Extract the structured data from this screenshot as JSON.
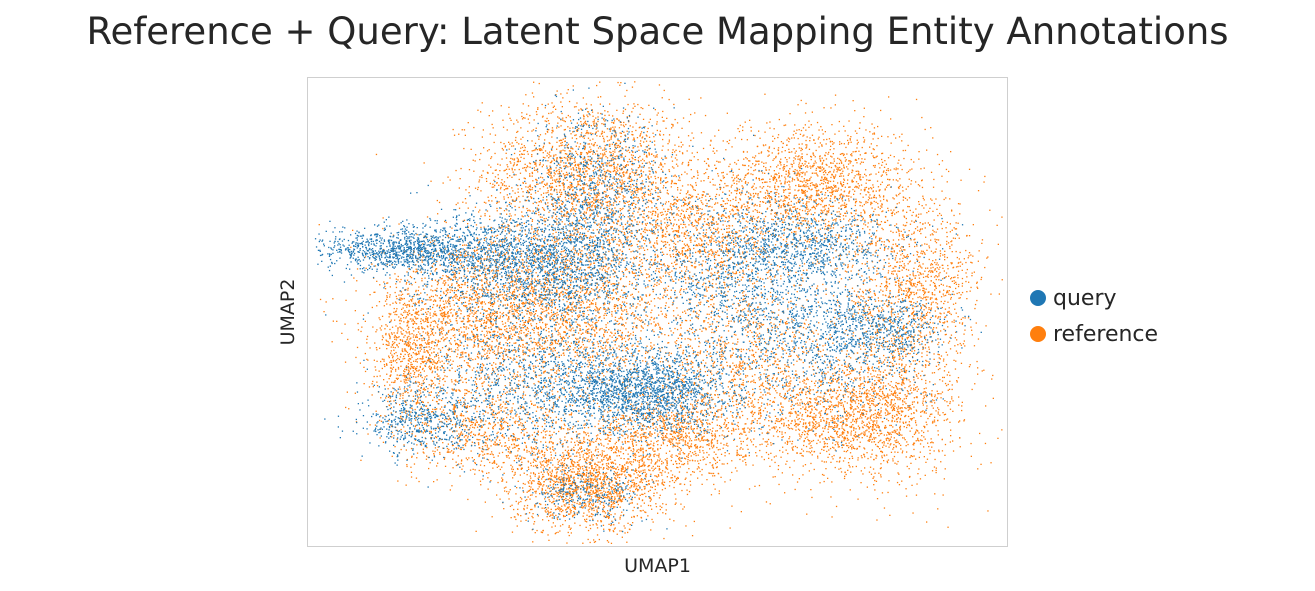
{
  "chart_data": {
    "type": "scatter",
    "title": "Reference + Query: Latent Space Mapping Entity Annotations",
    "xlabel": "UMAP1",
    "ylabel": "UMAP2",
    "grid": false,
    "ticks": false,
    "legend_placement": "right",
    "series": [
      {
        "name": "query",
        "color": "#1f77b4",
        "clusters": [
          {
            "x": -7.5,
            "y": 2.0,
            "sx": 1.2,
            "sy": 0.35,
            "n": 900
          },
          {
            "x": -4.5,
            "y": 1.7,
            "sx": 1.5,
            "sy": 0.8,
            "n": 1300
          },
          {
            "x": -2.5,
            "y": 1.2,
            "sx": 1.4,
            "sy": 1.0,
            "n": 900
          },
          {
            "x": -1.8,
            "y": 3.8,
            "sx": 1.0,
            "sy": 1.3,
            "n": 900
          },
          {
            "x": -0.5,
            "y": -2.5,
            "sx": 1.4,
            "sy": 0.7,
            "n": 2000
          },
          {
            "x": -4.0,
            "y": -2.2,
            "sx": 1.5,
            "sy": 1.3,
            "n": 900
          },
          {
            "x": -6.8,
            "y": -3.5,
            "sx": 0.8,
            "sy": 0.6,
            "n": 500
          },
          {
            "x": 2.5,
            "y": 1.0,
            "sx": 1.3,
            "sy": 1.3,
            "n": 1100
          },
          {
            "x": 4.5,
            "y": 2.2,
            "sx": 1.3,
            "sy": 0.6,
            "n": 700
          },
          {
            "x": 5.0,
            "y": -1.0,
            "sx": 1.4,
            "sy": 1.2,
            "n": 900
          },
          {
            "x": 6.5,
            "y": -0.5,
            "sx": 1.0,
            "sy": 0.5,
            "n": 400
          },
          {
            "x": -2.0,
            "y": -5.8,
            "sx": 0.8,
            "sy": 0.5,
            "n": 300
          }
        ]
      },
      {
        "name": "reference",
        "color": "#ff7f0e",
        "clusters": [
          {
            "x": -2.0,
            "y": 4.5,
            "sx": 1.5,
            "sy": 1.2,
            "n": 2000
          },
          {
            "x": 4.5,
            "y": 4.0,
            "sx": 1.6,
            "sy": 1.0,
            "n": 1700
          },
          {
            "x": -5.5,
            "y": 0.0,
            "sx": 1.3,
            "sy": 1.3,
            "n": 1500
          },
          {
            "x": -2.5,
            "y": 0.2,
            "sx": 1.5,
            "sy": 1.5,
            "n": 2000
          },
          {
            "x": -7.0,
            "y": -1.5,
            "sx": 0.6,
            "sy": 1.0,
            "n": 600
          },
          {
            "x": -2.0,
            "y": -5.5,
            "sx": 1.1,
            "sy": 0.8,
            "n": 1600
          },
          {
            "x": 0.5,
            "y": -4.0,
            "sx": 1.2,
            "sy": 0.8,
            "n": 1000
          },
          {
            "x": 2.5,
            "y": -1.5,
            "sx": 1.5,
            "sy": 1.6,
            "n": 1300
          },
          {
            "x": 5.5,
            "y": -3.5,
            "sx": 1.3,
            "sy": 0.9,
            "n": 1300
          },
          {
            "x": 7.0,
            "y": -1.5,
            "sx": 1.0,
            "sy": 1.8,
            "n": 1000
          },
          {
            "x": 7.5,
            "y": 1.2,
            "sx": 0.9,
            "sy": 1.1,
            "n": 700
          },
          {
            "x": 1.2,
            "y": 2.5,
            "sx": 1.2,
            "sy": 1.0,
            "n": 900
          },
          {
            "x": -5.0,
            "y": -3.8,
            "sx": 1.3,
            "sy": 0.8,
            "n": 800
          }
        ]
      }
    ]
  }
}
